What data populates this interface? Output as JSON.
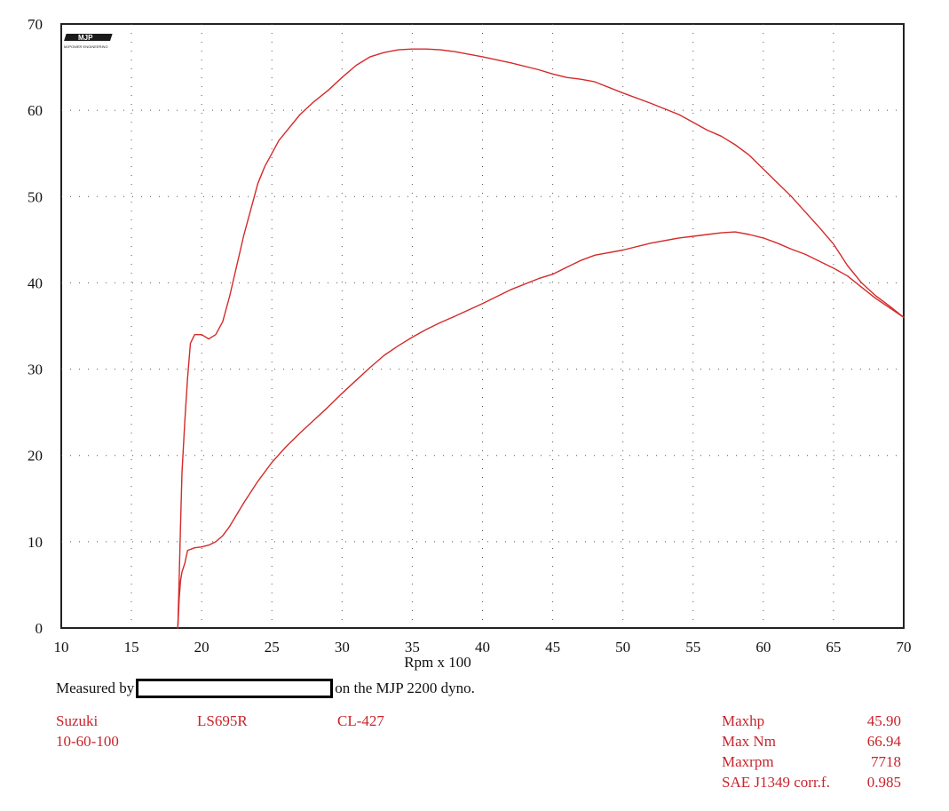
{
  "chart_data": {
    "type": "line",
    "xlabel": "Rpm x 100",
    "ylabel": "",
    "xlim": [
      10,
      70
    ],
    "ylim": [
      0,
      70
    ],
    "x_ticks": [
      "10",
      "15",
      "20",
      "25",
      "30",
      "35",
      "40",
      "45",
      "50",
      "55",
      "60",
      "65",
      "70"
    ],
    "y_ticks": [
      "0",
      "10",
      "20",
      "30",
      "40",
      "50",
      "60",
      "70"
    ],
    "grid": true,
    "series": [
      {
        "color": "#d42a2a",
        "x": [
          18.3,
          18.4,
          18.5,
          18.6,
          18.8,
          19.0,
          19.2,
          19.5,
          20.0,
          20.5,
          21.0,
          21.5,
          22.0,
          22.5,
          23.0,
          23.5,
          24.0,
          24.5,
          25.0,
          25.5,
          26.0,
          27.0,
          28.0,
          29.0,
          30.0,
          31.0,
          32.0,
          33.0,
          34.0,
          35.0,
          36.0,
          37.0,
          38.0,
          40.0,
          42.0,
          44.0,
          45.0,
          46.0,
          47.0,
          48.0,
          50.0,
          52.0,
          54.0,
          55.0,
          56.0,
          57.0,
          58.0,
          59.0,
          60.0,
          61.0,
          62.0,
          63.0,
          64.0,
          65.0,
          66.0,
          67.0,
          68.0,
          69.0,
          70.0
        ],
        "values": [
          0,
          6,
          12,
          18,
          24,
          29,
          33.0,
          34.0,
          34.0,
          33.5,
          34.0,
          35.5,
          38.5,
          42.0,
          45.5,
          48.5,
          51.5,
          53.5,
          55.0,
          56.5,
          57.5,
          59.5,
          61.0,
          62.3,
          63.8,
          65.2,
          66.2,
          66.7,
          67.0,
          67.1,
          67.1,
          67.0,
          66.8,
          66.2,
          65.5,
          64.7,
          64.2,
          63.8,
          63.6,
          63.3,
          62.0,
          60.8,
          59.5,
          58.6,
          57.7,
          57.0,
          56.0,
          54.8,
          53.2,
          51.6,
          50.0,
          48.2,
          46.4,
          44.5,
          42.0,
          40.0,
          38.5,
          37.3,
          36.0
        ]
      },
      {
        "color": "#d42a2a",
        "x": [
          18.3,
          18.4,
          18.5,
          18.6,
          18.8,
          19.0,
          19.5,
          20.0,
          20.5,
          21.0,
          21.5,
          22.0,
          23.0,
          24.0,
          25.0,
          26.0,
          27.0,
          28.0,
          29.0,
          30.0,
          31.0,
          32.0,
          33.0,
          34.0,
          35.0,
          36.0,
          37.0,
          38.0,
          40.0,
          42.0,
          44.0,
          45.0,
          46.0,
          47.0,
          48.0,
          50.0,
          52.0,
          54.0,
          55.0,
          56.0,
          57.0,
          58.0,
          59.0,
          60.0,
          61.0,
          62.0,
          63.0,
          64.0,
          65.0,
          66.0,
          67.0,
          68.0,
          69.0,
          70.0
        ],
        "values": [
          0,
          3.5,
          5.5,
          6.5,
          7.5,
          9.0,
          9.3,
          9.4,
          9.6,
          10.0,
          10.7,
          11.8,
          14.5,
          17.0,
          19.2,
          21.0,
          22.6,
          24.1,
          25.6,
          27.2,
          28.7,
          30.2,
          31.6,
          32.7,
          33.7,
          34.6,
          35.4,
          36.1,
          37.6,
          39.2,
          40.5,
          41.0,
          41.8,
          42.6,
          43.2,
          43.8,
          44.6,
          45.2,
          45.4,
          45.6,
          45.8,
          45.9,
          45.6,
          45.2,
          44.6,
          43.9,
          43.3,
          42.5,
          41.7,
          40.8,
          39.5,
          38.2,
          37.1,
          36.0
        ]
      }
    ]
  },
  "footer": {
    "measured_prefix": "Measured by",
    "measured_suffix": "on the MJP 2200 dyno.",
    "make": "Suzuki",
    "model": "LS695R",
    "code": "CL-427",
    "gears": "10-60-100",
    "stats": [
      {
        "label": "Maxhp",
        "value": "45.90"
      },
      {
        "label": "Max Nm",
        "value": "66.94"
      },
      {
        "label": "Maxrpm",
        "value": "7718"
      },
      {
        "label": "SAE J1349 corr.f.",
        "value": "0.985"
      }
    ]
  },
  "logo_text": "MJP",
  "logo_subtext": "MJPOWER ENGINEERING"
}
